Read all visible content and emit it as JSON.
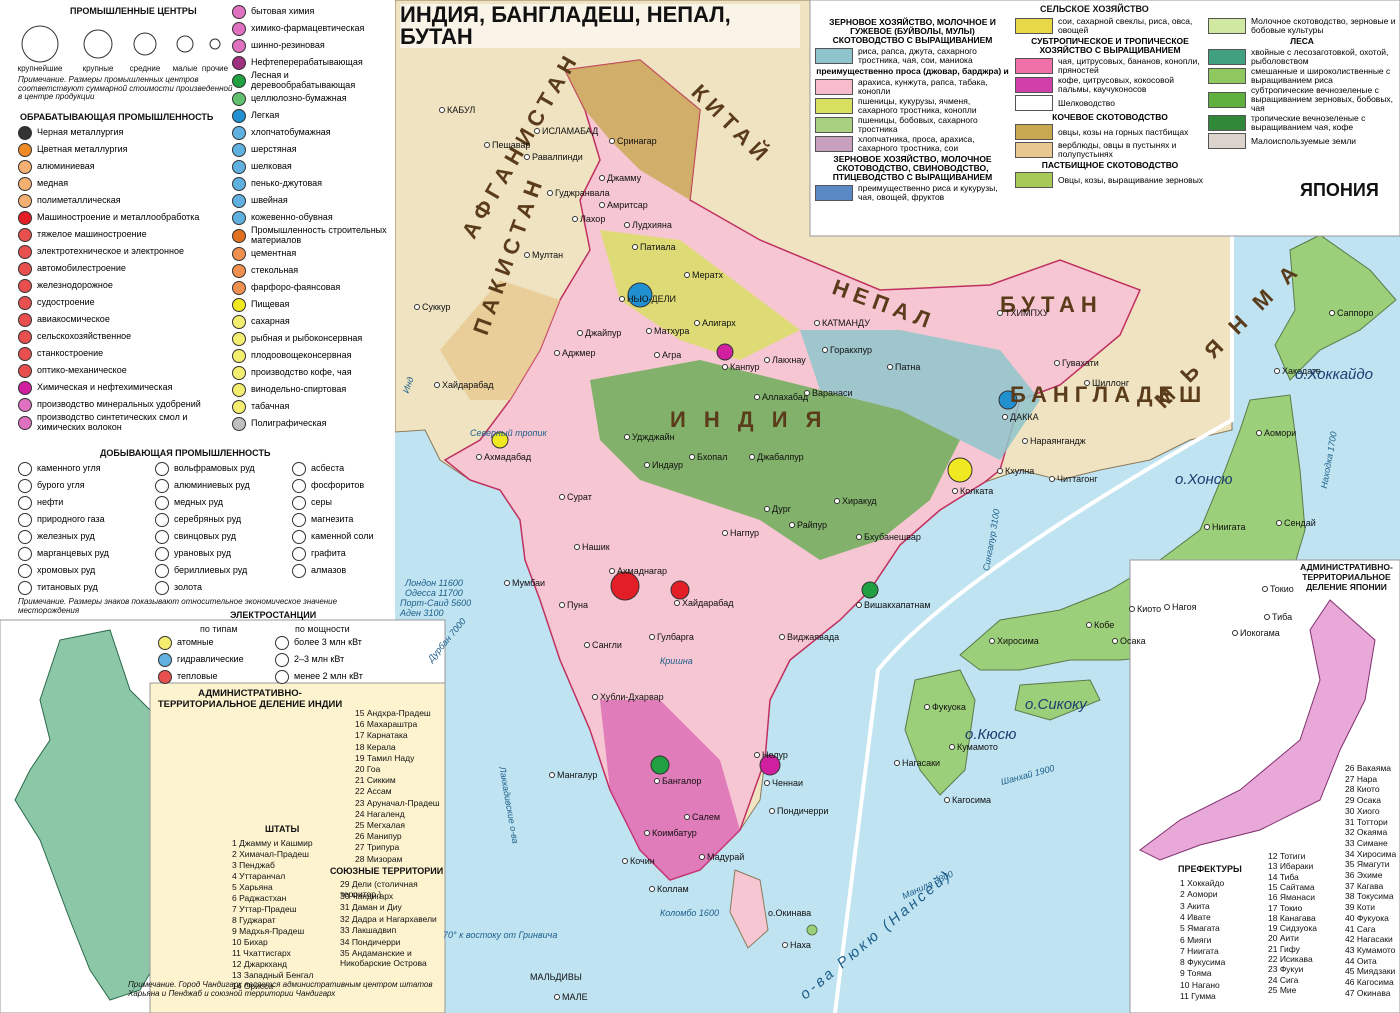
{
  "title": "ИНДИЯ, БАНГЛАДЕШ, НЕПАЛ, БУТАН",
  "centers": {
    "title": "ПРОМЫШЛЕННЫЕ ЦЕНТРЫ",
    "sizes": [
      "крупнейшие",
      "крупные",
      "средние",
      "малые",
      "прочие"
    ],
    "note": "Примечание. Размеры промышленных центров соответствуют суммарной стоимости произведенной в центре продукции"
  },
  "manufacturing": {
    "title": "ОБРАБАТЫВАЮЩАЯ ПРОМЫШЛЕННОСТЬ",
    "items": [
      {
        "label": "Черная металлургия",
        "color": "#333333"
      },
      {
        "label": "Цветная металлургия",
        "color": "#f08a24"
      },
      {
        "label": "алюминиевая",
        "color": "#f4b070"
      },
      {
        "label": "медная",
        "color": "#f4b070"
      },
      {
        "label": "полиметаллическая",
        "color": "#f4b070"
      },
      {
        "label": "Машиностроение и металлообработка",
        "color": "#e41e26"
      },
      {
        "label": "тяжелое машиностроение",
        "color": "#e85050"
      },
      {
        "label": "электротехническое и электронное",
        "color": "#e85050"
      },
      {
        "label": "автомобилестроение",
        "color": "#e85050"
      },
      {
        "label": "железнодорожное",
        "color": "#e85050"
      },
      {
        "label": "судостроение",
        "color": "#e85050"
      },
      {
        "label": "авиакосмическое",
        "color": "#e85050"
      },
      {
        "label": "сельскохозяйственное",
        "color": "#e85050"
      },
      {
        "label": "станкостроение",
        "color": "#e85050"
      },
      {
        "label": "оптико-механическое",
        "color": "#e85050"
      },
      {
        "label": "Химическая и нефтехимическая",
        "color": "#d020a0"
      },
      {
        "label": "производство минеральных удобрений",
        "color": "#e070c0"
      },
      {
        "label": "производство синтетических смол и химических волокон",
        "color": "#e070c0"
      },
      {
        "label": "бытовая химия",
        "color": "#e070c0"
      },
      {
        "label": "химико-фармацевтическая",
        "color": "#e070c0"
      },
      {
        "label": "шинно-резиновая",
        "color": "#e070c0"
      },
      {
        "label": "Нефтеперерабатывающая",
        "color": "#a03080"
      },
      {
        "label": "Лесная и деревообрабатывающая",
        "color": "#20a040"
      },
      {
        "label": "целлюлозно-бумажная",
        "color": "#60c070"
      },
      {
        "label": "Легкая",
        "color": "#2090d0"
      },
      {
        "label": "хлопчатобумажная",
        "color": "#60b0e0"
      },
      {
        "label": "шерстяная",
        "color": "#60b0e0"
      },
      {
        "label": "шелковая",
        "color": "#60b0e0"
      },
      {
        "label": "пенько-джутовая",
        "color": "#60b0e0"
      },
      {
        "label": "швейная",
        "color": "#60b0e0"
      },
      {
        "label": "кожевенно-обувная",
        "color": "#60b0e0"
      },
      {
        "label": "Промышленность строительных материалов",
        "color": "#e07020"
      },
      {
        "label": "цементная",
        "color": "#f09050"
      },
      {
        "label": "стекольная",
        "color": "#f09050"
      },
      {
        "label": "фарфоро-фаянсовая",
        "color": "#f09050"
      },
      {
        "label": "Пищевая",
        "color": "#f0e820"
      },
      {
        "label": "сахарная",
        "color": "#f4ee70"
      },
      {
        "label": "рыбная и рыбоконсервная",
        "color": "#f4ee70"
      },
      {
        "label": "плодоовощеконсервная",
        "color": "#f4ee70"
      },
      {
        "label": "производство кофе, чая",
        "color": "#f4ee70"
      },
      {
        "label": "винодельно-спиртовая",
        "color": "#f4ee70"
      },
      {
        "label": "табачная",
        "color": "#f4ee70"
      },
      {
        "label": "Полиграфическая",
        "color": "#c0c0c0"
      }
    ]
  },
  "mining": {
    "title": "ДОБЫВАЮЩАЯ ПРОМЫШЛЕННОСТЬ",
    "items": [
      "каменного угля",
      "бурого угля",
      "нефти",
      "природного газа",
      "железных руд",
      "марганцевых руд",
      "хромовых руд",
      "титановых руд",
      "вольфрамовых руд",
      "алюминиевых руд",
      "медных руд",
      "серебряных руд",
      "свинцовых руд",
      "урановых руд",
      "бериллиевых руд",
      "золота",
      "асбеста",
      "фосфоритов",
      "серы",
      "магнезита",
      "каменной соли",
      "графита",
      "алмазов"
    ],
    "note": "Примечание. Размеры знаков показывают относительное экономическое значение месторождения"
  },
  "power": {
    "title": "ЭЛЕКТРОСТАНЦИИ",
    "by_type": "по типам",
    "by_capacity": "по мощности",
    "types": [
      "атомные",
      "гидравлические",
      "тепловые"
    ],
    "capacities": [
      "более 3 млн кВт",
      "2–3 млн кВт",
      "менее 2 млн кВт"
    ]
  },
  "agriculture": {
    "title": "СЕЛЬСКОЕ ХОЗЯЙСТВО",
    "columns": [
      [
        {
          "heading": "ЗЕРНОВОЕ ХОЗЯЙСТВО, МОЛОЧНОЕ И ГУЖЕВОЕ (БУЙВОЛЫ, МУЛЫ) СКОТОВОДСТВО С ВЫРАЩИВАНИЕМ"
        },
        {
          "label": "риса, рапса, джута, сахарного тростника, чая, сои, маниока",
          "color": "#8fc4cc"
        },
        {
          "heading": "преимущественно проса (джовар, барджра) и"
        },
        {
          "label": "арахиса, кунжута, рапса, табака, конопли",
          "color": "#f6bccb"
        },
        {
          "label": "пшеницы, кукурузы, ячменя, сахарного тростника, конопли",
          "color": "#d8e060"
        },
        {
          "label": "пшеницы, бобовых, сахарного тростника",
          "color": "#a8d080"
        },
        {
          "label": "хлопчатника, проса, арахиса, сахарного тростника, сои",
          "color": "#c8a0c0"
        },
        {
          "heading": "ЗЕРНОВОЕ ХОЗЯЙСТВО, МОЛОЧНОЕ СКОТОВОДСТВО, СВИНОВОДСТВО, ПТИЦЕВОДСТВО С ВЫРАЩИВАНИЕМ"
        },
        {
          "label": "преимущественно риса и кукурузы, чая, овощей, фруктов",
          "color": "#5a88c4"
        }
      ],
      [
        {
          "label": "сои, сахарной свеклы, риса, овса, овощей",
          "color": "#e8d848"
        },
        {
          "heading": "СУБТРОПИЧЕСКОЕ И ТРОПИЧЕСКОЕ ХОЗЯЙСТВО С ВЫРАЩИВАНИЕМ"
        },
        {
          "label": "чая, цитрусовых, бананов, конопли, пряностей",
          "color": "#f070a8"
        },
        {
          "label": "кофе, цитрусовых, кокосовой пальмы, каучуконосов",
          "color": "#d040a8"
        },
        {
          "label": "Шелководство",
          "color": "#ffffff"
        },
        {
          "heading": "КОЧЕВОЕ СКОТОВОДСТВО"
        },
        {
          "label": "овцы, козы на горных пастбищах",
          "color": "#c8a850"
        },
        {
          "label": "верблюды, овцы в пустынях и полупустынях",
          "color": "#e8c890"
        },
        {
          "heading": "ПАСТБИЩНОЕ СКОТОВОДСТВО"
        },
        {
          "label": "Овцы, козы, выращивание зерновых",
          "color": "#a8c858"
        }
      ],
      [
        {
          "label": "Молочное скотоводство, зерновые и бобовые культуры",
          "color": "#d0e8a0"
        },
        {
          "heading": "ЛЕСА"
        },
        {
          "label": "хвойные с лесозаготовкой, охотой, рыболовством",
          "color": "#40a080"
        },
        {
          "label": "смешанные и широколиственные с выращиванием риса",
          "color": "#90c860"
        },
        {
          "label": "субтропические вечнозеленые с выращиванием зерновых, бобовых, чая",
          "color": "#60b040"
        },
        {
          "label": "тропические вечнозеленые с выращиванием чая, кофе",
          "color": "#308838"
        },
        {
          "label": "Малоиспользуемые земли",
          "color": "#dcd4cc"
        }
      ]
    ]
  },
  "map": {
    "countries": [
      "И Н Д И Я",
      "ПАКИСТАН",
      "АФГАНИСТАН",
      "КИТАЙ",
      "НЕПАЛ",
      "БУТАН",
      "БАНГЛАДЕШ",
      "М Ь Я Н М А",
      "ЯПОНИЯ"
    ],
    "cities": [
      "КАБУЛ",
      "Пешавар",
      "ИСЛАМАБАД",
      "Равалпинди",
      "Сринагар",
      "Джамму",
      "Гуджранвала",
      "Лахор",
      "Амритсар",
      "Лудхияна",
      "Патиала",
      "Мултан",
      "Суккур",
      "Хайдарабад",
      "НЬЮ-ДЕЛИ",
      "Мератх",
      "Матхура",
      "Алигарх",
      "Агра",
      "Джайпур",
      "Аджмер",
      "Канпур",
      "Лакхнау",
      "Горакхпур",
      "Аллахабад",
      "Варанаси",
      "Патна",
      "КАТМАНДУ",
      "ТХИМПХУ",
      "Гувахати",
      "Шиллонг",
      "ДАККА",
      "Нараянгандж",
      "Кхулна",
      "Читтагонг",
      "Колката",
      "Ахмадабад",
      "Уджджайн",
      "Индаур",
      "Бхопал",
      "Джабалпур",
      "Сурат",
      "Нагпур",
      "Дург",
      "Райпур",
      "Хиракуд",
      "Бхубанешвар",
      "Нашик",
      "Мумбаи",
      "Ахмаднагар",
      "Пуна",
      "Хайдарабад",
      "Гулбарга",
      "Вишакхапатнам",
      "Виджаявада",
      "Сангли",
      "Хубли-Дхарвар",
      "Мангалур",
      "Бангалор",
      "Ченнаи",
      "Пондичерри",
      "Салем",
      "Коимбатур",
      "Кочин",
      "Мадурай",
      "Коллам",
      "Нелур",
      "МАЛЕ",
      "Наха"
    ],
    "japan_cities": [
      "Саппоро",
      "Хакодате",
      "Аомори",
      "Ниигата",
      "Сендай",
      "Токио",
      "Иокогама",
      "Тиба",
      "Нагоя",
      "Киото",
      "Осака",
      "Кобе",
      "Хиросима",
      "Фукуока",
      "Нагасаки",
      "Кагосима",
      "Кумамото"
    ],
    "islands": [
      "о.Хоккайдо",
      "о.Хонсю",
      "о.Сикоку",
      "о.Кюсю",
      "о.Окинава",
      "МАЛЬДИВЫ"
    ],
    "water": [
      "Инд",
      "Северный тропик",
      "Лондон 11600",
      "Одесса 11700",
      "Порт-Саид 5600",
      "Аден 3100",
      "Дурбан 7000",
      "Лаккадивские о-ва",
      "Коломбо 1600",
      "Сингапур 3100",
      "Манила 3300",
      "Шанхай 1900",
      "Находка 1700",
      "о-ва Рюкю (Нансей)",
      "Кришна",
      "70° к востоку от Гринвича"
    ]
  },
  "india_admin": {
    "title": "АДМИНИСТРАТИВНО-ТЕРРИТОРИАЛЬНОЕ ДЕЛЕНИЕ ИНДИИ",
    "states_title": "ШТАТЫ",
    "states": [
      "1 Джамму и Кашмир",
      "2 Химачал-Прадеш",
      "3 Пенджаб",
      "4 Уттаранчал",
      "5 Харьяна",
      "6 Раджастхан",
      "7 Уттар-Прадеш",
      "8 Гуджарат",
      "9 Мадхья-Прадеш",
      "10 Бихар",
      "11 Чхаттисгарх",
      "12 Джаркханд",
      "13 Западный Бенгал",
      "14 Орисса",
      "15 Андхра-Прадеш",
      "16 Махараштра",
      "17 Карнатака",
      "18 Керала",
      "19 Тамил Наду",
      "20 Гоа",
      "21 Сикким",
      "22 Ассам",
      "23 Аруначал-Прадеш",
      "24 Нагаленд",
      "25 Мегхалая",
      "26 Манипур",
      "27 Трипура",
      "28 Мизорам"
    ],
    "territories_title": "СОЮЗНЫЕ ТЕРРИТОРИИ",
    "territories": [
      "29 Дели (столичная территор.)",
      "30 Чандигарх",
      "31 Даман и Диу",
      "32 Дадра и Нагархавели",
      "33 Лакшадвип",
      "34 Пондичерри",
      "35 Андаманские и Никобарские Острова"
    ],
    "note": "Примечание. Город Чандигарх является административным центром штатов Харьяна и Пенджаб и союзной территории Чандигарх"
  },
  "japan_admin": {
    "title": "АДМИНИСТРАТИВНО-ТЕРРИТОРИАЛЬНОЕ ДЕЛЕНИЕ ЯПОНИИ",
    "prefectures_title": "ПРЕФЕКТУРЫ",
    "prefectures": [
      "1 Хоккайдо",
      "2 Аомори",
      "3 Акита",
      "4 Ивате",
      "5 Ямагата",
      "6 Мияги",
      "7 Ниигата",
      "8 Фукусима",
      "9 Тояма",
      "10 Нагано",
      "11 Гумма",
      "12 Тотиги",
      "13 Ибараки",
      "14 Тиба",
      "15 Сайтама",
      "16 Яманаси",
      "17 Токио",
      "18 Канагава",
      "19 Сидзуока",
      "20 Аити",
      "21 Гифу",
      "22 Исикава",
      "23 Фукуи",
      "24 Сига",
      "25 Мие",
      "26 Вакаяма",
      "27 Нара",
      "28 Киото",
      "29 Осака",
      "30 Хиого",
      "31 Тоттори",
      "32 Окаяма",
      "33 Симане",
      "34 Хиросима",
      "35 Ямагути",
      "36 Эхиме",
      "37 Кагава",
      "38 Токусима",
      "39 Коти",
      "40 Фукуока",
      "41 Сага",
      "42 Нагасаки",
      "43 Кумамото",
      "44 Оита",
      "45 Миядзаки",
      "46 Кагосима",
      "47 Окинава"
    ]
  }
}
